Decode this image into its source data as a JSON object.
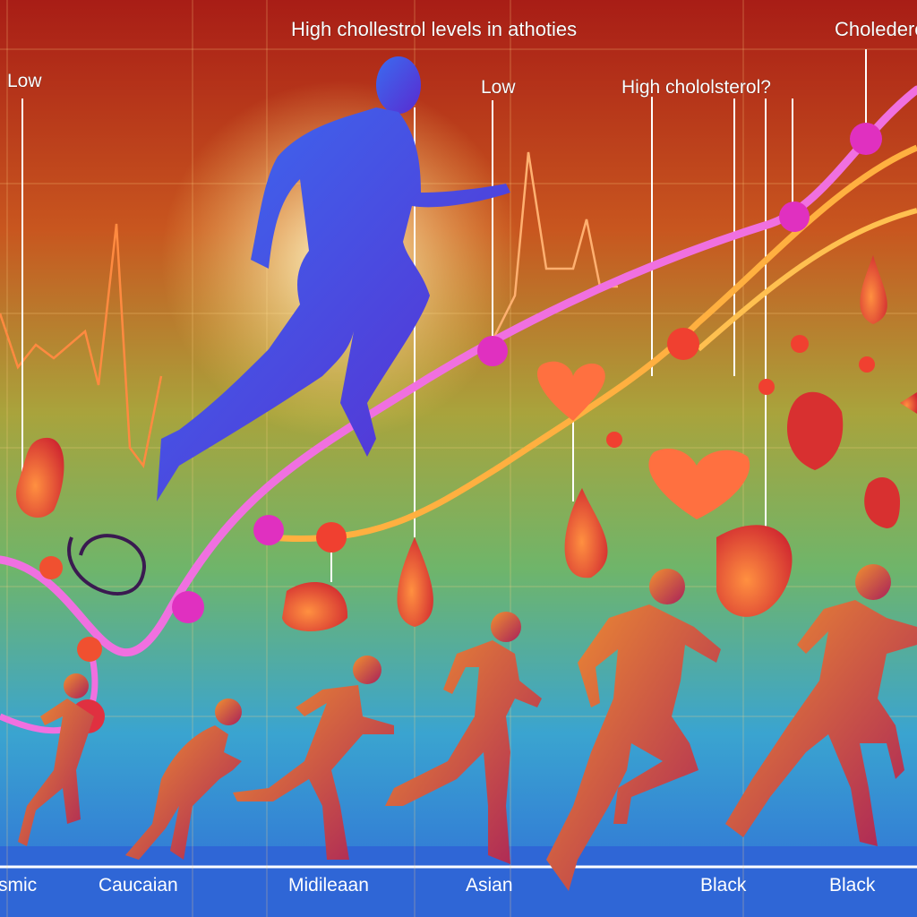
{
  "title": "High chollestrol levels in athoties",
  "labels": {
    "low_left": "Low",
    "low_center": "Low",
    "high_question": "High chololsterol?",
    "top_right": "Cholederol"
  },
  "groups": [
    "smic",
    "Caucaian",
    "Midileaan",
    "Asian",
    "Black",
    "Black"
  ],
  "colors": {
    "top": "#b0201a",
    "middle": "#7fb04a",
    "bottom": "#2e6fd8",
    "pink_curve": "#f070e0",
    "orange_curve": "#ffb040",
    "runner_main": "#2f5be8",
    "runners": "#b8306a"
  }
}
